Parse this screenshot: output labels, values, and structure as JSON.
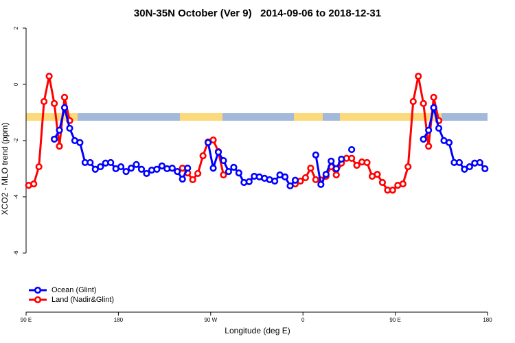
{
  "chart_data": {
    "type": "line",
    "title": "30N-35N October (Ver 9)   2014-09-06 to 2018-12-31",
    "x_label": "Longitude (deg E)",
    "y_label": "XCO2 - MLO trend (ppm)",
    "x": [
      92.5,
      97.5,
      102.5,
      107.5,
      112.5,
      117.5,
      122.5,
      127.5,
      132.5,
      137.5,
      142.5,
      147.5,
      152.5,
      157.5,
      162.5,
      167.5,
      172.5,
      177.5,
      182.5,
      187.5,
      192.5,
      197.5,
      202.5,
      207.5,
      212.5,
      217.5,
      222.5,
      227.5,
      232.5,
      237.5,
      242.5,
      247.5,
      252.5,
      257.5,
      262.5,
      267.5,
      272.5,
      277.5,
      282.5,
      287.5,
      292.5,
      297.5,
      302.5,
      307.5,
      312.5,
      317.5,
      322.5,
      327.5,
      332.5,
      337.5,
      342.5,
      347.5,
      352.5,
      357.5,
      362.5,
      367.5,
      372.5,
      377.5,
      382.5,
      387.5,
      392.5,
      397.5,
      402.5,
      407.5,
      412.5,
      417.5,
      422.5,
      427.5,
      432.5,
      437.5,
      442.5,
      447.5,
      452.5,
      457.5,
      462.5,
      467.5,
      472.5,
      477.5,
      482.5,
      487.5,
      492.5,
      497.5,
      502.5,
      507.5,
      512.5,
      517.5,
      522.5,
      527.5,
      532.5,
      537.5
    ],
    "series": [
      {
        "name": "Land (Nadir&Glint)",
        "color": "#ff0000",
        "values": [
          -3.59,
          -3.54,
          -2.93,
          -0.61,
          0.29,
          -0.68,
          -2.2,
          -0.46,
          -1.29,
          null,
          null,
          null,
          null,
          null,
          null,
          null,
          null,
          null,
          null,
          null,
          null,
          null,
          null,
          null,
          null,
          null,
          null,
          null,
          null,
          null,
          -2.98,
          -3.15,
          -3.39,
          -3.17,
          -2.54,
          -2.05,
          -1.98,
          -2.39,
          -3.22,
          null,
          null,
          null,
          null,
          null,
          null,
          null,
          null,
          null,
          null,
          null,
          null,
          null,
          -3.54,
          -3.44,
          -3.32,
          -2.98,
          -3.39,
          -3.4,
          -3.27,
          -2.93,
          -3.22,
          -2.8,
          -2.63,
          -2.63,
          -2.88,
          -2.76,
          -2.78,
          -3.27,
          -3.2,
          -3.49,
          -3.76,
          -3.76,
          -3.59,
          -3.54,
          -2.93,
          -0.61,
          0.29,
          -0.68,
          -2.2,
          -0.46,
          -1.29,
          null,
          null,
          null,
          null,
          null,
          null,
          null,
          null,
          null
        ]
      },
      {
        "name": "Ocean (Glint)",
        "color": "#0000ff",
        "values": [
          null,
          null,
          null,
          null,
          null,
          -1.95,
          -1.63,
          -0.83,
          -1.56,
          -2.0,
          -2.07,
          -2.78,
          -2.78,
          -3.02,
          -2.93,
          -2.8,
          -2.78,
          -3.0,
          -2.93,
          -3.1,
          -2.98,
          -2.85,
          -3.02,
          -3.17,
          -3.05,
          -3.02,
          -2.9,
          -3.0,
          -2.98,
          -3.1,
          -3.37,
          -2.98,
          null,
          null,
          null,
          -2.07,
          -2.98,
          -2.41,
          -2.71,
          -3.1,
          -2.95,
          -3.15,
          -3.49,
          -3.46,
          -3.27,
          -3.29,
          -3.34,
          -3.39,
          -3.44,
          -3.22,
          -3.29,
          -3.61,
          -3.41,
          null,
          null,
          null,
          -2.51,
          -3.56,
          -3.2,
          -2.73,
          -3.0,
          -2.66,
          null,
          -2.32,
          null,
          null,
          null,
          null,
          null,
          null,
          null,
          null,
          null,
          null,
          null,
          null,
          null,
          -1.95,
          -1.63,
          -0.83,
          -1.56,
          -2.0,
          -2.07,
          -2.78,
          -2.78,
          -3.02,
          -2.93,
          -2.8,
          -2.78,
          -3.0
        ]
      }
    ],
    "xlim": [
      90,
      540
    ],
    "xticks": [
      {
        "value": 90,
        "label": "90 E"
      },
      180,
      {
        "value": 270,
        "label": "90 W"
      },
      {
        "value": 360,
        "label": "0"
      },
      {
        "value": 450,
        "label": "90 E"
      },
      {
        "value": 540,
        "label": "180"
      }
    ],
    "ylim": [
      -8.1,
      2
    ],
    "yticks": [
      2,
      0,
      -2,
      -4,
      -6
    ],
    "grid": false,
    "legend": "bottom-left"
  }
}
